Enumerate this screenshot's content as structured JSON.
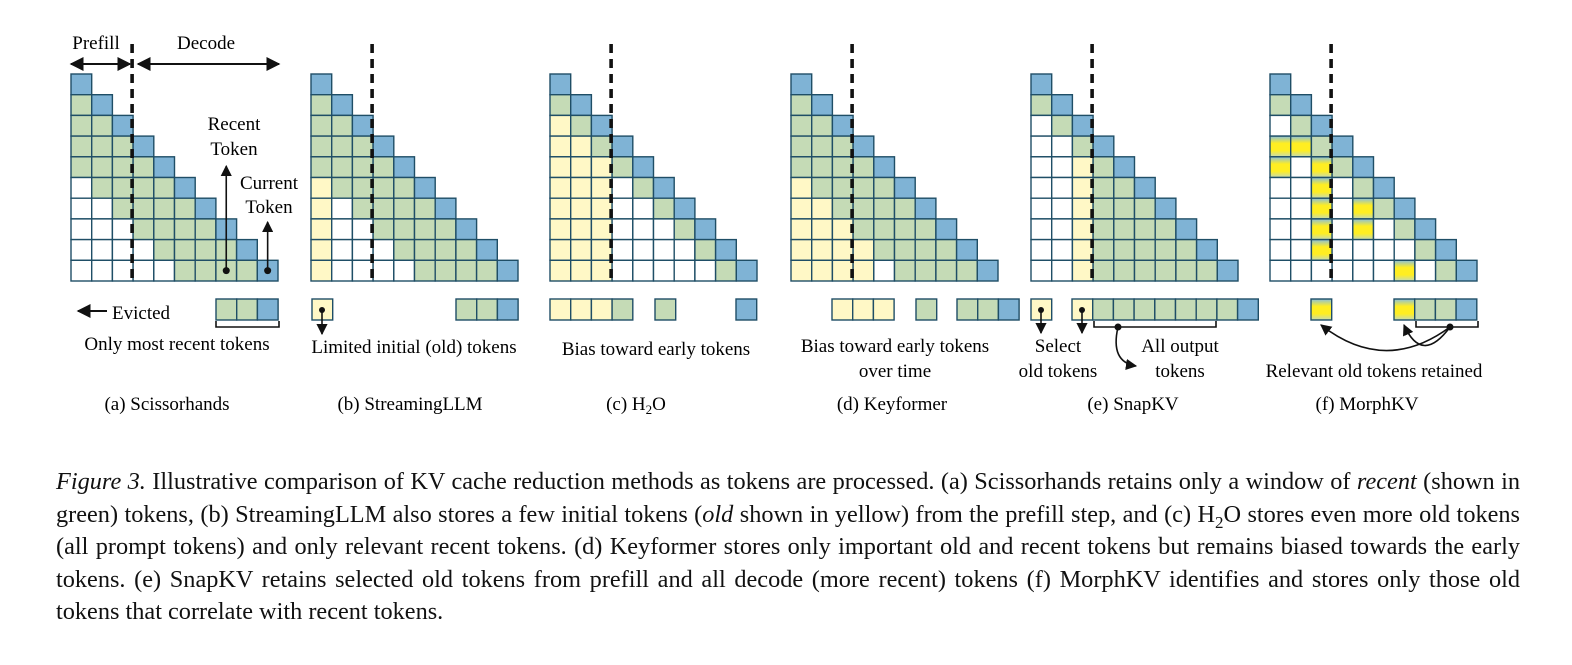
{
  "colors": {
    "current": "#7fb3d5",
    "recent": "#c5dbb6",
    "old": "#fff8c6",
    "highlight": "#ffee22",
    "grid": "#1f4e66"
  },
  "panels": [
    {
      "key": "a",
      "caption": "(a) Scissorhands",
      "header_prefill": "Prefill",
      "header_decode": "Decode",
      "annotation_recent": [
        "Recent",
        "Token"
      ],
      "annotation_current": [
        "Current",
        "Token"
      ],
      "evicted_label": "Evicted",
      "strip_labels": [
        "Only most recent tokens"
      ]
    },
    {
      "key": "b",
      "caption": "(b) StreamingLLM",
      "strip_labels": [
        "Limited initial (old) tokens"
      ]
    },
    {
      "key": "c",
      "caption_prefix": "(c) H",
      "caption_sub": "2",
      "caption_suffix": "O",
      "strip_labels": [
        "Bias toward early tokens"
      ]
    },
    {
      "key": "d",
      "caption": "(d) Keyformer",
      "strip_labels": [
        "Bias toward early tokens",
        "over time"
      ]
    },
    {
      "key": "e",
      "caption": "(e) SnapKV",
      "strip_labels_left": [
        "Select",
        "old tokens"
      ],
      "strip_labels_right": [
        "All output",
        "tokens"
      ]
    },
    {
      "key": "f",
      "caption": "(f) MorphKV",
      "strip_labels": [
        "Relevant old tokens retained"
      ]
    }
  ],
  "caption": {
    "label": "Figure 3.",
    "t1": " Illustrative comparison of KV cache reduction methods as tokens are processed. (a) Scissorhands retains only a window of ",
    "t2": "recent",
    "t3": " (shown in green) tokens, (b) StreamingLLM also stores a few initial tokens (",
    "t4": "old",
    "t5": " shown in yellow) from the prefill step, and (c) H",
    "t6": "2",
    "t7": "O stores even more old tokens (all prompt tokens) and only relevant recent tokens. (d) Keyformer stores only important old and recent tokens but remains biased towards the early tokens. (e) SnapKV retains selected old tokens from prefill and all decode (more recent) tokens (f) MorphKV identifies and stores only those old tokens that correlate with recent tokens."
  }
}
